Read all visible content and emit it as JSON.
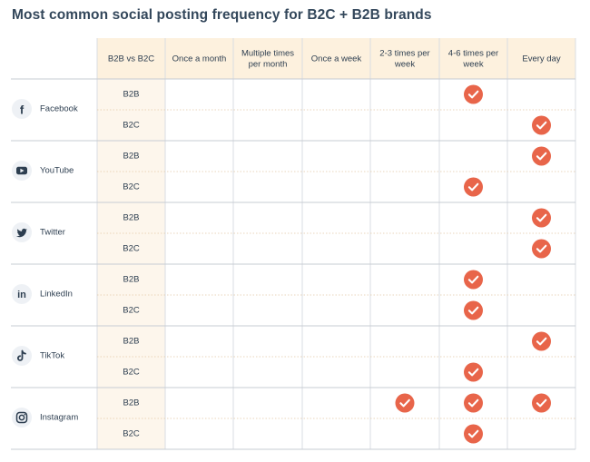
{
  "title": "Most common social posting frequency for B2C + B2B brands",
  "chart_data": {
    "type": "table",
    "title": "Most common social posting frequency for B2C + B2B brands",
    "first_column_header": "B2B vs B2C",
    "columns": [
      [
        "Once a month"
      ],
      [
        "Multiple times",
        "per month"
      ],
      [
        "Once a week"
      ],
      [
        "2-3 times per",
        "week"
      ],
      [
        "4-6 times per",
        "week"
      ],
      [
        "Every day"
      ]
    ],
    "platforms": [
      {
        "name": "Facebook",
        "icon": "facebook-icon",
        "rows": [
          {
            "segment": "B2B",
            "checks": [
              4
            ]
          },
          {
            "segment": "B2C",
            "checks": [
              5
            ]
          }
        ]
      },
      {
        "name": "YouTube",
        "icon": "youtube-icon",
        "rows": [
          {
            "segment": "B2B",
            "checks": [
              5
            ]
          },
          {
            "segment": "B2C",
            "checks": [
              4
            ]
          }
        ]
      },
      {
        "name": "Twitter",
        "icon": "twitter-icon",
        "rows": [
          {
            "segment": "B2B",
            "checks": [
              5
            ]
          },
          {
            "segment": "B2C",
            "checks": [
              5
            ]
          }
        ]
      },
      {
        "name": "LinkedIn",
        "icon": "linkedin-icon",
        "rows": [
          {
            "segment": "B2B",
            "checks": [
              4
            ]
          },
          {
            "segment": "B2C",
            "checks": [
              4
            ]
          }
        ]
      },
      {
        "name": "TikTok",
        "icon": "tiktok-icon",
        "rows": [
          {
            "segment": "B2B",
            "checks": [
              5
            ]
          },
          {
            "segment": "B2C",
            "checks": [
              4
            ]
          }
        ]
      },
      {
        "name": "Instagram",
        "icon": "instagram-icon",
        "rows": [
          {
            "segment": "B2B",
            "checks": [
              3,
              4,
              5
            ]
          },
          {
            "segment": "B2C",
            "checks": [
              4
            ]
          }
        ]
      }
    ]
  },
  "colors": {
    "header_bg": "#fdf1de",
    "segment_bg": "#fdf6ec",
    "check": "#e8654a",
    "grid": "#d9dde3",
    "text": "#2d3e50"
  }
}
